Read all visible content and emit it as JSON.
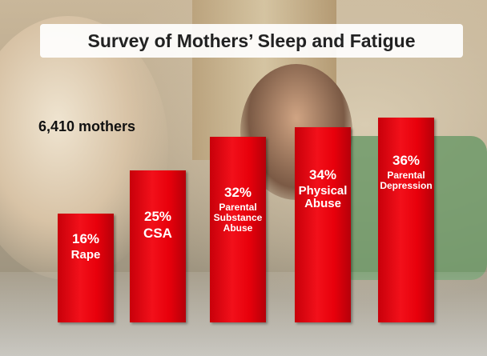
{
  "chart_data": {
    "type": "bar",
    "title": "Survey of Mothers’ Sleep and Fatigue",
    "annotation": "6,410 mothers",
    "categories": [
      "Rape",
      "CSA",
      "Parental Substance Abuse",
      "Physical Abuse",
      "Parental Depression"
    ],
    "values": [
      16,
      25,
      32,
      34,
      36
    ],
    "value_labels": [
      "16%",
      "25%",
      "32%",
      "34%",
      "36%"
    ],
    "color": "#e8000b"
  }
}
